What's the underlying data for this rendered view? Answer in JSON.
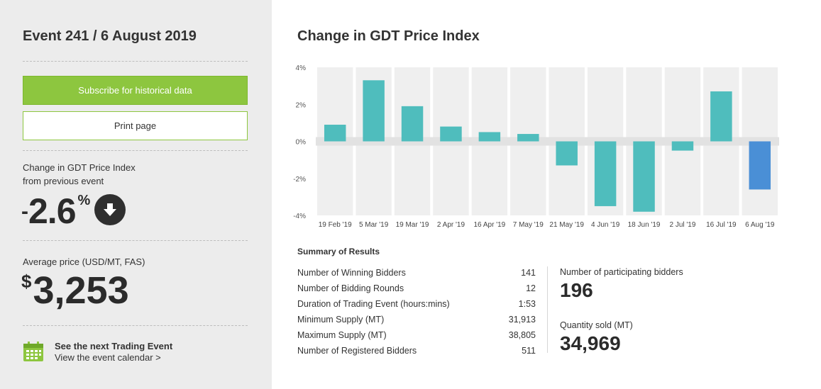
{
  "sidebar": {
    "event_title": "Event 241 / 6 August 2019",
    "subscribe_label": "Subscribe for historical data",
    "print_label": "Print page",
    "change_label_line1": "Change in GDT Price Index",
    "change_label_line2": "from previous event",
    "change_sign": "-",
    "change_value": "2.6",
    "change_unit": "%",
    "avg_price_label": "Average price (USD/MT, FAS)",
    "avg_price_currency": "$",
    "avg_price_value": "3,253",
    "next_event_title": "See the next Trading Event",
    "next_event_link": "View the event calendar >"
  },
  "colors": {
    "bar_positive": "#4fbdbd",
    "bar_latest": "#4a8fd6",
    "accent_green": "#8dc63f"
  },
  "icons": {
    "direction": "arrow-down-circle-icon",
    "calendar": "calendar-icon"
  },
  "chart_data": {
    "type": "bar",
    "title": "Change in GDT Price Index",
    "categories": [
      "19 Feb '19",
      "5 Mar '19",
      "19 Mar '19",
      "2 Apr '19",
      "16 Apr '19",
      "7 May '19",
      "21 May '19",
      "4 Jun '19",
      "18 Jun '19",
      "2 Jul '19",
      "16 Jul '19",
      "6 Aug '19"
    ],
    "values": [
      0.9,
      3.3,
      1.9,
      0.8,
      0.5,
      0.4,
      -1.3,
      -3.5,
      -3.8,
      -0.5,
      2.7,
      -2.6
    ],
    "ylim": [
      -4,
      4
    ],
    "yticks": [
      -4,
      -2,
      0,
      2,
      4
    ],
    "ytick_labels": [
      "-4%",
      "-2%",
      "0%",
      "2%",
      "4%"
    ],
    "xlabel": "",
    "ylabel": ""
  },
  "summary": {
    "title": "Summary of Results",
    "rows": [
      {
        "label": "Number of Winning Bidders",
        "value": "141"
      },
      {
        "label": "Number of Bidding Rounds",
        "value": "12"
      },
      {
        "label": "Duration of Trading Event (hours:mins)",
        "value": "1:53"
      },
      {
        "label": "Minimum Supply (MT)",
        "value": "31,913"
      },
      {
        "label": "Maximum Supply (MT)",
        "value": "38,805"
      },
      {
        "label": "Number of Registered Bidders",
        "value": "511"
      }
    ],
    "participating_label": "Number of participating bidders",
    "participating_value": "196",
    "sold_label": "Quantity sold (MT)",
    "sold_value": "34,969"
  }
}
